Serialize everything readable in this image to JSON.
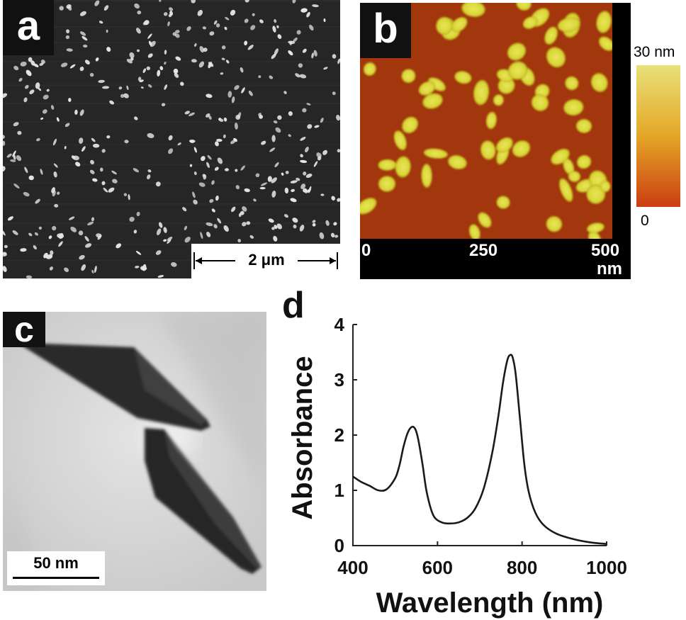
{
  "panels": {
    "a": {
      "label": "a",
      "scale_bar": "2 μm"
    },
    "b": {
      "label": "b",
      "axis_ticks": [
        "0",
        "250",
        "500"
      ],
      "axis_unit": "nm",
      "colorbar": {
        "max_label": "30 nm",
        "min_label": "0",
        "colors": [
          "#e9e07a",
          "#e4a727",
          "#cb3d12"
        ]
      }
    },
    "c": {
      "label": "c",
      "scale_bar": "50 nm"
    },
    "d": {
      "label": "d"
    }
  },
  "chart_data": {
    "type": "line",
    "title": "",
    "xlabel": "Wavelength (nm)",
    "ylabel": "Absorbance",
    "xlim": [
      400,
      1000
    ],
    "ylim": [
      0,
      4
    ],
    "xticks": [
      400,
      600,
      800,
      1000
    ],
    "yticks": [
      0,
      1,
      2,
      3,
      4
    ],
    "grid": false,
    "series": [
      {
        "color": "#1a1a1a",
        "x": [
          400,
          420,
          440,
          460,
          480,
          500,
          510,
          520,
          530,
          540,
          548,
          555,
          565,
          575,
          590,
          610,
          630,
          650,
          670,
          690,
          710,
          730,
          745,
          755,
          765,
          772,
          778,
          785,
          795,
          805,
          815,
          830,
          850,
          880,
          920,
          960,
          1000
        ],
        "y": [
          1.25,
          1.15,
          1.08,
          1.0,
          1.02,
          1.22,
          1.45,
          1.8,
          2.05,
          2.15,
          2.1,
          1.9,
          1.45,
          0.95,
          0.55,
          0.42,
          0.4,
          0.42,
          0.5,
          0.68,
          1.05,
          1.7,
          2.4,
          2.95,
          3.35,
          3.45,
          3.4,
          3.1,
          2.3,
          1.5,
          1.0,
          0.62,
          0.38,
          0.22,
          0.12,
          0.06,
          0.03
        ]
      }
    ]
  }
}
